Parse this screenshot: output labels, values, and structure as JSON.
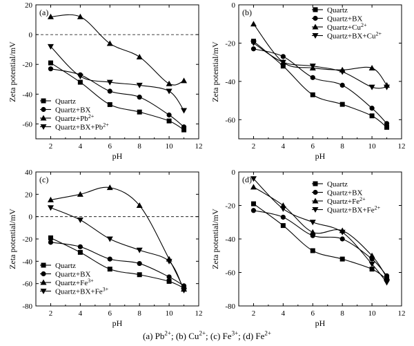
{
  "caption": [
    {
      "text": "(a) Pb",
      "sup": "2+"
    },
    {
      "text": "; (b) Cu",
      "sup": "2+"
    },
    {
      "text": "; (c) Fe",
      "sup": "3+"
    },
    {
      "text": "; (d) Fe",
      "sup": "2+"
    }
  ],
  "chart_data": [
    {
      "type": "line",
      "panel_label": "(a)",
      "xlabel": "pH",
      "ylabel": "Zeta potential/mV",
      "xlim": [
        1,
        12
      ],
      "ylim": [
        -70,
        20
      ],
      "xticks": [
        2,
        4,
        6,
        8,
        10,
        12
      ],
      "yticks": [
        -60,
        -40,
        -20,
        0,
        20
      ],
      "zero_line": true,
      "legend_position": "bottom-left",
      "x": [
        2,
        4,
        6,
        8,
        10,
        11
      ],
      "series": [
        {
          "name": "Quartz",
          "marker": "square",
          "values": [
            -19,
            -32,
            -47,
            -52,
            -58,
            -64
          ]
        },
        {
          "name": "Quartz+BX",
          "marker": "circle",
          "values": [
            -23,
            -27,
            -38,
            -42,
            -54,
            -62
          ]
        },
        {
          "name": "Quartz+Pb",
          "name_sup": "2+",
          "marker": "triangle-up",
          "values": [
            12,
            12,
            -6,
            -15,
            -33,
            -31
          ]
        },
        {
          "name": "Quartz+BX+Pb",
          "name_sup": "2+",
          "marker": "triangle-down",
          "values": [
            -8,
            -28,
            -32,
            -34,
            -38,
            -51
          ]
        }
      ]
    },
    {
      "type": "line",
      "panel_label": "(b)",
      "xlabel": "pH",
      "ylabel": "Zeta potential/mV",
      "xlim": [
        1,
        12
      ],
      "ylim": [
        -70,
        0
      ],
      "xticks": [
        2,
        4,
        6,
        8,
        10,
        12
      ],
      "yticks": [
        -60,
        -40,
        -20,
        0
      ],
      "zero_line": false,
      "legend_position": "top-right",
      "x": [
        2,
        4,
        6,
        8,
        10,
        11
      ],
      "series": [
        {
          "name": "Quartz",
          "marker": "square",
          "values": [
            -19,
            -32,
            -47,
            -52,
            -58,
            -64
          ]
        },
        {
          "name": "Quartz+BX",
          "marker": "circle",
          "values": [
            -23,
            -27,
            -38,
            -42,
            -54,
            -62
          ]
        },
        {
          "name": "Quartz+Cu",
          "name_sup": "2+",
          "marker": "triangle-up",
          "values": [
            -10,
            -30,
            -33,
            -34,
            -33,
            -42
          ]
        },
        {
          "name": "Quartz+BX+Cu",
          "name_sup": "2+",
          "marker": "triangle-down",
          "values": [
            -20,
            -30,
            -32,
            -35,
            -43,
            -43
          ]
        }
      ]
    },
    {
      "type": "line",
      "panel_label": "(c)",
      "xlabel": "pH",
      "ylabel": "Zeta potential/mV",
      "xlim": [
        1,
        12
      ],
      "ylim": [
        -80,
        40
      ],
      "xticks": [
        2,
        4,
        6,
        8,
        10,
        12
      ],
      "yticks": [
        -80,
        -60,
        -40,
        -20,
        0,
        20,
        40
      ],
      "zero_line": true,
      "legend_position": "bottom-left",
      "x": [
        2,
        4,
        6,
        8,
        10,
        11
      ],
      "series": [
        {
          "name": "Quartz",
          "marker": "square",
          "values": [
            -19,
            -32,
            -47,
            -52,
            -58,
            -64
          ]
        },
        {
          "name": "Quartz+BX",
          "marker": "circle",
          "values": [
            -23,
            -27,
            -38,
            -42,
            -54,
            -62
          ]
        },
        {
          "name": "Quartz+Fe",
          "name_sup": "3+",
          "marker": "triangle-up",
          "values": [
            15,
            20,
            26,
            10,
            -38,
            -65
          ]
        },
        {
          "name": "Quartz+BX+Fe",
          "name_sup": "3+",
          "marker": "triangle-down",
          "values": [
            8,
            -3,
            -20,
            -30,
            -40,
            -66
          ]
        }
      ]
    },
    {
      "type": "line",
      "panel_label": "(d)",
      "xlabel": "pH",
      "ylabel": "Zeta potential/mV",
      "xlim": [
        1,
        12
      ],
      "ylim": [
        -80,
        0
      ],
      "xticks": [
        2,
        4,
        6,
        8,
        10,
        12
      ],
      "yticks": [
        -80,
        -60,
        -40,
        -20,
        0
      ],
      "zero_line": false,
      "legend_position": "top-right",
      "x": [
        2,
        4,
        6,
        8,
        10,
        11
      ],
      "series": [
        {
          "name": "Quartz",
          "marker": "square",
          "values": [
            -19,
            -32,
            -47,
            -52,
            -58,
            -64
          ]
        },
        {
          "name": "Quartz+BX",
          "marker": "circle",
          "values": [
            -23,
            -27,
            -38,
            -40,
            -52,
            -62
          ]
        },
        {
          "name": "Quartz+Fe",
          "name_sup": "2+",
          "marker": "triangle-up",
          "values": [
            -9,
            -20,
            -36,
            -35,
            -50,
            -63
          ]
        },
        {
          "name": "Quartz+BX+Fe",
          "name_sup": "2+",
          "marker": "triangle-down",
          "values": [
            -4,
            -22,
            -30,
            -36,
            -55,
            -66
          ]
        }
      ]
    }
  ]
}
